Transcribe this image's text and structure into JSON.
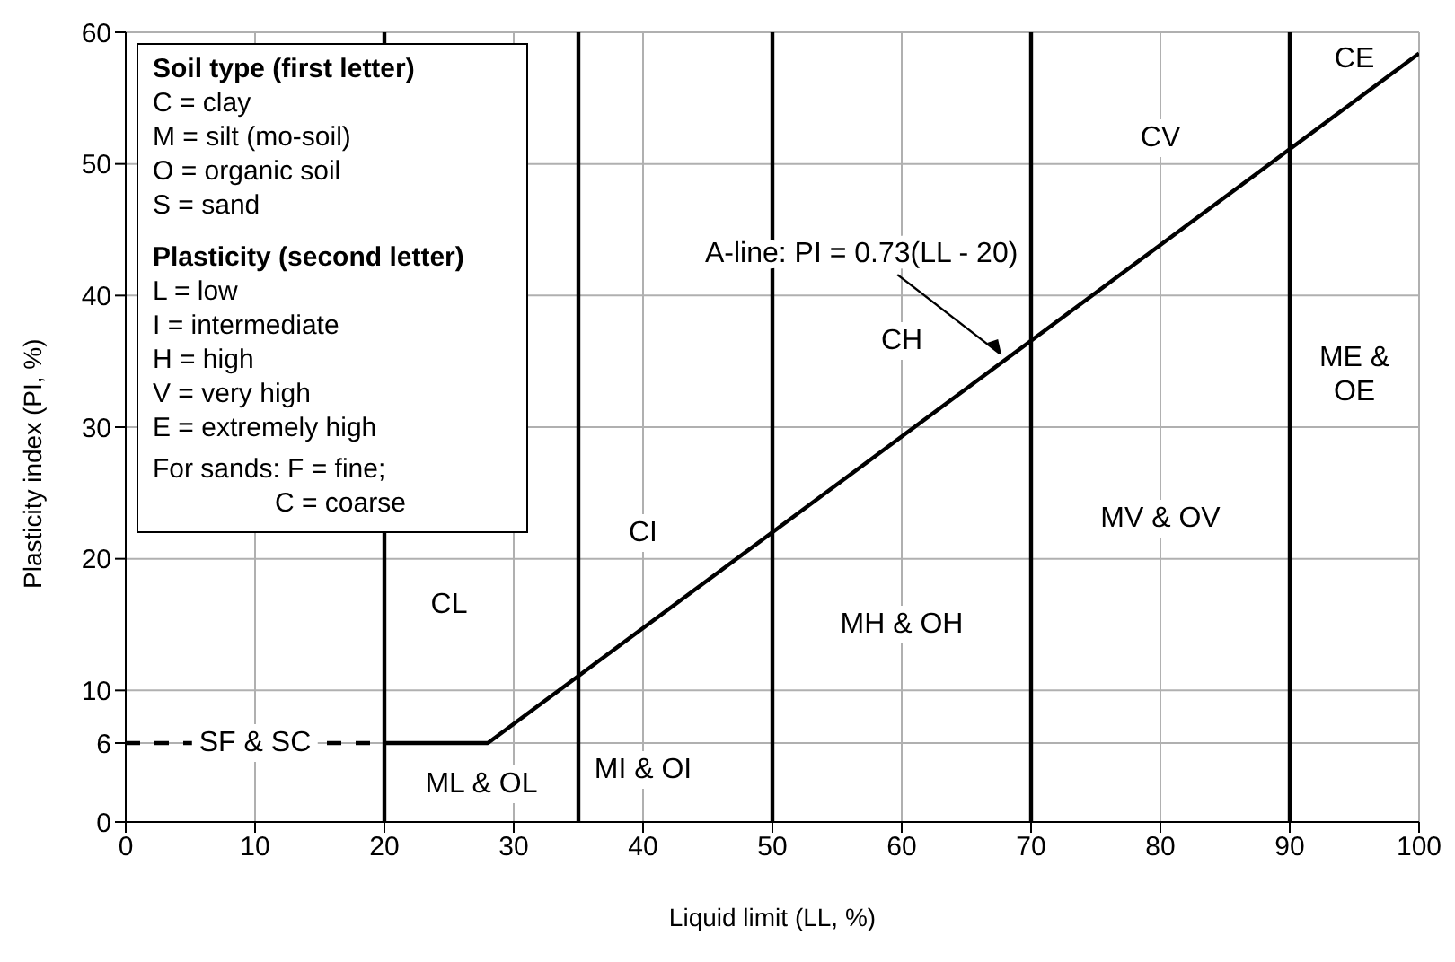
{
  "chart_data": {
    "type": "line",
    "xlabel": "Liquid limit (LL, %)",
    "ylabel": "Plasticity index (PI, %)",
    "xlim": [
      0,
      100
    ],
    "ylim": [
      0,
      60
    ],
    "xticks": [
      0,
      10,
      20,
      30,
      40,
      50,
      60,
      70,
      80,
      90,
      100
    ],
    "yticks": [
      0,
      6,
      10,
      20,
      30,
      40,
      50,
      60
    ],
    "grid": true,
    "series": [
      {
        "color": "#000000",
        "x": [
          20,
          28,
          100
        ],
        "values": [
          6,
          6,
          58.4
        ],
        "line_style": "solid"
      },
      {
        "color": "#000000",
        "x": [
          0,
          20
        ],
        "values": [
          6,
          6
        ],
        "line_style": "dashed"
      }
    ],
    "ref_lines": [
      {
        "axis": "x",
        "value": 20,
        "color": "#000000"
      },
      {
        "axis": "x",
        "value": 35,
        "color": "#000000"
      },
      {
        "axis": "x",
        "value": 50,
        "color": "#000000"
      },
      {
        "axis": "x",
        "value": 70,
        "color": "#000000"
      },
      {
        "axis": "x",
        "value": 90,
        "color": "#000000"
      }
    ],
    "annotations": [
      "Soil type (first letter)",
      "C = clay",
      "M = silt (mo-soil)",
      "O = organic soil",
      "S = sand",
      "Plasticity (second letter)",
      "L = low",
      "I = intermediate",
      "H = high",
      "V = very high",
      "E = extremely high",
      "For sands: F = fine;",
      "C = coarse",
      "SF & SC",
      "CL",
      "ML & OL",
      "CI",
      "MI & OI",
      "CH",
      "MH & OH",
      "CV",
      "MV & OV",
      "CE",
      "ME &\nOE",
      {
        "text": "A-line: PI = 0.73(LL - 20)",
        "x": 68,
        "y": 35.04
      }
    ]
  }
}
